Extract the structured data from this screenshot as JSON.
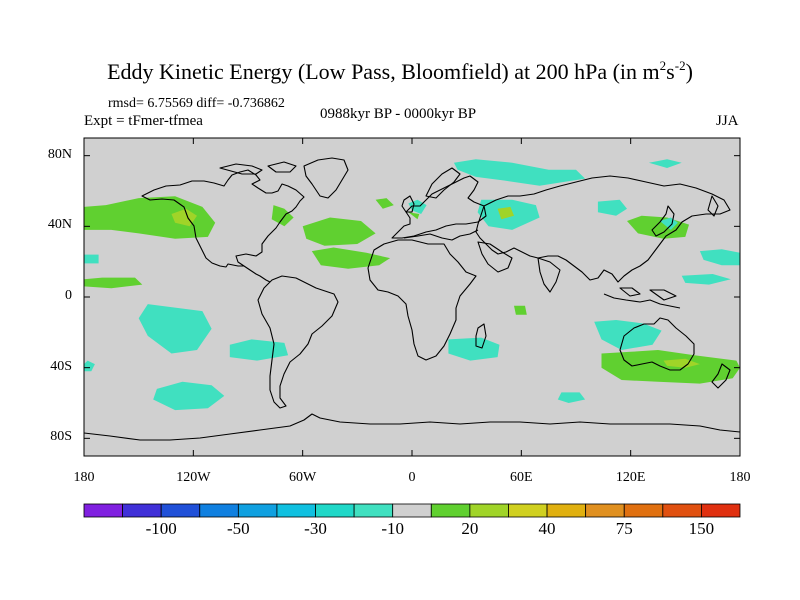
{
  "title": {
    "main": "Eddy Kinetic Energy (Low Pass, Bloomfield) at 200 hPa (in m",
    "sup1": "2",
    "mid": "s",
    "sup2": "-2",
    "end": ")"
  },
  "stats": "rmsd= 6.75569 diff= -0.736862",
  "experiment": "Expt = tFmer-tfmea",
  "period": "0988kyr BP - 0000kyr BP",
  "season": "JJA",
  "map": {
    "projection": "cylindrical-equidistant",
    "lon_range": [
      -180,
      180
    ],
    "lat_range": [
      -90,
      90
    ],
    "background_color": "#d0d0d0",
    "y_ticks": [
      {
        "lat": 80,
        "label": "80N"
      },
      {
        "lat": 40,
        "label": "40N"
      },
      {
        "lat": 0,
        "label": "0"
      },
      {
        "lat": -40,
        "label": "40S"
      },
      {
        "lat": -80,
        "label": "80S"
      }
    ],
    "x_ticks": [
      {
        "lon": -180,
        "label": "180"
      },
      {
        "lon": -120,
        "label": "120W"
      },
      {
        "lon": -60,
        "label": "60W"
      },
      {
        "lon": 0,
        "label": "0"
      },
      {
        "lon": 60,
        "label": "60E"
      },
      {
        "lon": 120,
        "label": "120E"
      },
      {
        "lon": 180,
        "label": "180"
      }
    ],
    "anomaly_regions": [
      {
        "name": "na-pacific-positive",
        "color": "#60d030",
        "points": [
          [
            -180,
            51
          ],
          [
            -168,
            52
          ],
          [
            -150,
            56
          ],
          [
            -130,
            57
          ],
          [
            -115,
            51
          ],
          [
            -108,
            42
          ],
          [
            -112,
            34
          ],
          [
            -130,
            33
          ],
          [
            -150,
            36
          ],
          [
            -165,
            38
          ],
          [
            -180,
            38
          ]
        ]
      },
      {
        "name": "na-pacific-inner",
        "color": "#a0d428",
        "points": [
          [
            -132,
            47
          ],
          [
            -124,
            50
          ],
          [
            -118,
            46
          ],
          [
            -122,
            40
          ],
          [
            -130,
            42
          ]
        ]
      },
      {
        "name": "north-america-positive",
        "color": "#60d030",
        "points": [
          [
            -76,
            52
          ],
          [
            -70,
            50
          ],
          [
            -65,
            45
          ],
          [
            -70,
            40
          ],
          [
            -77,
            44
          ]
        ]
      },
      {
        "name": "atlantic-positive",
        "color": "#60d030",
        "points": [
          [
            -60,
            40
          ],
          [
            -45,
            45
          ],
          [
            -28,
            43
          ],
          [
            -20,
            36
          ],
          [
            -30,
            30
          ],
          [
            -48,
            29
          ],
          [
            -58,
            33
          ]
        ]
      },
      {
        "name": "atlantic-small",
        "color": "#60d030",
        "points": [
          [
            -20,
            55
          ],
          [
            -14,
            56
          ],
          [
            -10,
            52
          ],
          [
            -16,
            50
          ]
        ]
      },
      {
        "name": "n-africa-positive",
        "color": "#60d030",
        "points": [
          [
            -55,
            26
          ],
          [
            -43,
            28
          ],
          [
            -25,
            25
          ],
          [
            -12,
            22
          ],
          [
            -18,
            18
          ],
          [
            -35,
            16
          ],
          [
            -50,
            18
          ]
        ]
      },
      {
        "name": "europe-negative",
        "color": "#40e0c0",
        "points": [
          [
            -2,
            53
          ],
          [
            3,
            55
          ],
          [
            8,
            52
          ],
          [
            5,
            47
          ],
          [
            0,
            49
          ]
        ]
      },
      {
        "name": "europe-positive-small",
        "color": "#60d030",
        "points": [
          [
            -2,
            48
          ],
          [
            4,
            47
          ],
          [
            3,
            44
          ]
        ]
      },
      {
        "name": "russia-negative",
        "color": "#40e0c0",
        "points": [
          [
            23,
            76
          ],
          [
            35,
            78
          ],
          [
            55,
            76
          ],
          [
            75,
            72
          ],
          [
            90,
            72
          ],
          [
            95,
            67
          ],
          [
            70,
            63
          ],
          [
            50,
            66
          ],
          [
            35,
            68
          ],
          [
            25,
            72
          ]
        ]
      },
      {
        "name": "arctic-negative",
        "color": "#40e0c0",
        "points": [
          [
            130,
            76
          ],
          [
            140,
            78
          ],
          [
            148,
            76
          ],
          [
            140,
            73
          ]
        ]
      },
      {
        "name": "central-asia-negative",
        "color": "#40e0c0",
        "points": [
          [
            38,
            55
          ],
          [
            55,
            55
          ],
          [
            68,
            52
          ],
          [
            70,
            45
          ],
          [
            55,
            38
          ],
          [
            42,
            40
          ],
          [
            36,
            48
          ]
        ]
      },
      {
        "name": "central-asia-inner",
        "color": "#a0d428",
        "points": [
          [
            47,
            50
          ],
          [
            54,
            51
          ],
          [
            56,
            46
          ],
          [
            49,
            44
          ]
        ]
      },
      {
        "name": "mongolia-negative",
        "color": "#40e0c0",
        "points": [
          [
            102,
            54
          ],
          [
            114,
            55
          ],
          [
            118,
            50
          ],
          [
            112,
            46
          ],
          [
            102,
            48
          ]
        ]
      },
      {
        "name": "japan-positive",
        "color": "#60d030",
        "points": [
          [
            118,
            43
          ],
          [
            126,
            46
          ],
          [
            140,
            45
          ],
          [
            152,
            41
          ],
          [
            150,
            34
          ],
          [
            138,
            33
          ],
          [
            124,
            36
          ]
        ]
      },
      {
        "name": "japan-negative",
        "color": "#40e0c0",
        "points": [
          [
            136,
            43
          ],
          [
            142,
            45
          ],
          [
            146,
            42
          ],
          [
            142,
            38
          ]
        ]
      },
      {
        "name": "pacific-nw-negative",
        "color": "#40e0c0",
        "points": [
          [
            158,
            26
          ],
          [
            170,
            27
          ],
          [
            180,
            25
          ],
          [
            180,
            18
          ],
          [
            170,
            18
          ],
          [
            160,
            21
          ]
        ]
      },
      {
        "name": "pacific-sub-negative",
        "color": "#40e0c0",
        "points": [
          [
            148,
            12
          ],
          [
            165,
            13
          ],
          [
            175,
            10
          ],
          [
            163,
            7
          ],
          [
            150,
            8
          ]
        ]
      },
      {
        "name": "pacific-dateline-negative",
        "color": "#40e0c0",
        "points": [
          [
            -180,
            24
          ],
          [
            -172,
            24
          ],
          [
            -172,
            19
          ],
          [
            -180,
            19
          ]
        ]
      },
      {
        "name": "hawaii-positive",
        "color": "#60d030",
        "points": [
          [
            -180,
            10
          ],
          [
            -170,
            11
          ],
          [
            -152,
            11
          ],
          [
            -148,
            7
          ],
          [
            -165,
            5
          ],
          [
            -180,
            6
          ]
        ]
      },
      {
        "name": "e-pacific-negative",
        "color": "#40e0c0",
        "points": [
          [
            -145,
            -4
          ],
          [
            -130,
            -6
          ],
          [
            -115,
            -8
          ],
          [
            -110,
            -18
          ],
          [
            -118,
            -30
          ],
          [
            -132,
            -32
          ],
          [
            -145,
            -22
          ],
          [
            -150,
            -12
          ]
        ]
      },
      {
        "name": "s-pacific-negative",
        "color": "#40e0c0",
        "points": [
          [
            -100,
            -27
          ],
          [
            -88,
            -24
          ],
          [
            -70,
            -26
          ],
          [
            -68,
            -33
          ],
          [
            -85,
            -36
          ],
          [
            -100,
            -34
          ]
        ]
      },
      {
        "name": "s-pacific-south-negative",
        "color": "#40e0c0",
        "points": [
          [
            -140,
            -52
          ],
          [
            -126,
            -48
          ],
          [
            -110,
            -50
          ],
          [
            -103,
            -56
          ],
          [
            -112,
            -63
          ],
          [
            -130,
            -64
          ],
          [
            -142,
            -58
          ]
        ]
      },
      {
        "name": "s-atlantic-negative",
        "color": "#40e0c0",
        "points": [
          [
            20,
            -24
          ],
          [
            38,
            -23
          ],
          [
            48,
            -27
          ],
          [
            47,
            -34
          ],
          [
            32,
            -36
          ],
          [
            20,
            -32
          ]
        ]
      },
      {
        "name": "madagascar-positive",
        "color": "#60d030",
        "points": [
          [
            56,
            -5
          ],
          [
            62,
            -5
          ],
          [
            63,
            -10
          ],
          [
            57,
            -10
          ]
        ]
      },
      {
        "name": "indian-negative",
        "color": "#40e0c0",
        "points": [
          [
            100,
            -14
          ],
          [
            112,
            -13
          ],
          [
            127,
            -15
          ],
          [
            137,
            -19
          ],
          [
            132,
            -27
          ],
          [
            115,
            -30
          ],
          [
            104,
            -24
          ]
        ]
      },
      {
        "name": "australia-positive",
        "color": "#60d030",
        "points": [
          [
            104,
            -32
          ],
          [
            120,
            -31
          ],
          [
            135,
            -30
          ],
          [
            155,
            -33
          ],
          [
            178,
            -36
          ],
          [
            180,
            -40
          ],
          [
            176,
            -46
          ],
          [
            158,
            -49
          ],
          [
            135,
            -48
          ],
          [
            115,
            -47
          ],
          [
            104,
            -40
          ]
        ]
      },
      {
        "name": "australia-inner",
        "color": "#a0d428",
        "points": [
          [
            138,
            -36
          ],
          [
            150,
            -35
          ],
          [
            158,
            -38
          ],
          [
            150,
            -40
          ],
          [
            140,
            -39
          ]
        ]
      },
      {
        "name": "south-ocean-negative",
        "color": "#40e0c0",
        "points": [
          [
            82,
            -54
          ],
          [
            92,
            -54
          ],
          [
            95,
            -58
          ],
          [
            86,
            -60
          ],
          [
            80,
            -58
          ]
        ]
      },
      {
        "name": "w-coast-negative",
        "color": "#40e0c0",
        "points": [
          [
            -180,
            -38
          ],
          [
            -178,
            -36
          ],
          [
            -174,
            -38
          ],
          [
            -176,
            -42
          ],
          [
            -180,
            -42
          ]
        ]
      }
    ]
  },
  "colorbar": {
    "colors": [
      "#8020e0",
      "#4030d8",
      "#2050d8",
      "#1080e0",
      "#10a0e0",
      "#10c0e0",
      "#20d8c8",
      "#40e0c0",
      "#d0d0d0",
      "#60d030",
      "#a0d428",
      "#d0d020",
      "#e0b010",
      "#e09020",
      "#e07010",
      "#e05010",
      "#e03010"
    ],
    "labels": [
      {
        "after_box": 2,
        "text": "-100"
      },
      {
        "after_box": 4,
        "text": "-50"
      },
      {
        "after_box": 6,
        "text": "-30"
      },
      {
        "after_box": 8,
        "text": "-10"
      },
      {
        "after_box": 10,
        "text": "20"
      },
      {
        "after_box": 12,
        "text": "40"
      },
      {
        "after_box": 14,
        "text": "75"
      },
      {
        "after_box": 16,
        "text": "150"
      }
    ]
  },
  "coastline_color": "#000000"
}
